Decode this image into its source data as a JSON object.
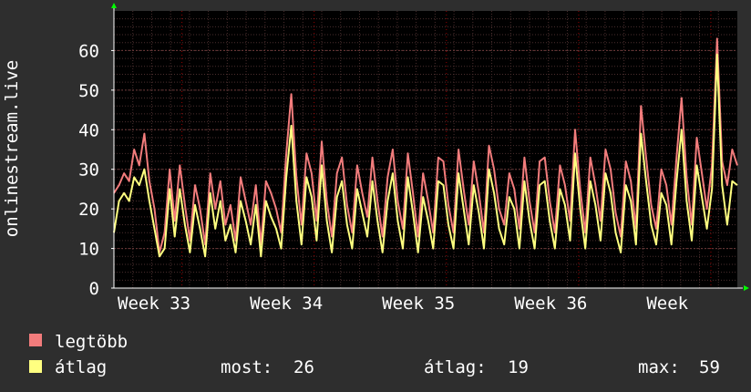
{
  "chart_data": {
    "type": "line",
    "ylabel": "onlinestream.live",
    "ylim": [
      0,
      70
    ],
    "yticks": [
      0,
      10,
      20,
      30,
      40,
      50,
      60
    ],
    "x_tick_labels": [
      "Week 33",
      "Week 34",
      "Week 35",
      "Week 36",
      "Week"
    ],
    "grid": true,
    "legend_placement": "bottom",
    "series": [
      {
        "name": "legtöbb",
        "color": "#f27c7c",
        "values": [
          24,
          26,
          29,
          27,
          35,
          31,
          39,
          27,
          20,
          9,
          14,
          30,
          17,
          31,
          21,
          12,
          26,
          20,
          11,
          29,
          20,
          27,
          16,
          21,
          12,
          28,
          22,
          16,
          26,
          11,
          27,
          24,
          20,
          14,
          34,
          49,
          28,
          16,
          34,
          29,
          17,
          37,
          22,
          13,
          29,
          33,
          21,
          14,
          31,
          24,
          18,
          33,
          22,
          13,
          28,
          35,
          22,
          15,
          34,
          24,
          13,
          29,
          22,
          14,
          33,
          32,
          21,
          14,
          35,
          25,
          16,
          32,
          24,
          14,
          36,
          30,
          20,
          16,
          29,
          25,
          15,
          33,
          22,
          14,
          32,
          33,
          22,
          14,
          31,
          26,
          17,
          40,
          25,
          14,
          33,
          26,
          17,
          35,
          30,
          19,
          13,
          32,
          27,
          15,
          46,
          33,
          21,
          15,
          30,
          26,
          16,
          33,
          48,
          28,
          16,
          38,
          29,
          20,
          31,
          63,
          32,
          26,
          35,
          31
        ]
      },
      {
        "name": "átlag",
        "color": "#ffff80",
        "values": [
          14,
          22,
          24,
          22,
          28,
          26,
          30,
          22,
          15,
          8,
          10,
          25,
          13,
          25,
          16,
          9,
          21,
          15,
          8,
          24,
          15,
          22,
          12,
          16,
          9,
          22,
          17,
          11,
          21,
          8,
          22,
          18,
          15,
          10,
          28,
          41,
          22,
          11,
          28,
          23,
          12,
          31,
          17,
          9,
          23,
          27,
          16,
          10,
          25,
          19,
          13,
          27,
          17,
          9,
          22,
          29,
          17,
          10,
          28,
          19,
          9,
          23,
          17,
          10,
          27,
          26,
          16,
          10,
          29,
          20,
          11,
          26,
          19,
          10,
          30,
          24,
          15,
          11,
          23,
          20,
          10,
          27,
          17,
          10,
          26,
          27,
          17,
          10,
          25,
          21,
          12,
          34,
          20,
          10,
          27,
          21,
          12,
          29,
          24,
          14,
          9,
          26,
          22,
          11,
          39,
          27,
          16,
          11,
          24,
          21,
          11,
          27,
          40,
          22,
          12,
          31,
          23,
          15,
          25,
          59,
          26,
          16,
          27,
          26
        ]
      }
    ],
    "legend": [
      {
        "name": "legtöbb",
        "color": "#f27c7c"
      },
      {
        "name": "átlag",
        "color": "#ffff80"
      }
    ],
    "stats": {
      "now_label": "most:",
      "now_value": "26",
      "avg_label": "átlag:",
      "avg_value": "19",
      "max_label": "max:",
      "max_value": "59"
    },
    "colors": {
      "background": "#2e2e2e",
      "plot_background": "#000000",
      "grid": "#4a2e2e",
      "axis": "#ffffff",
      "arrow": "#00ff00",
      "week_marker": "#ff0000"
    }
  }
}
